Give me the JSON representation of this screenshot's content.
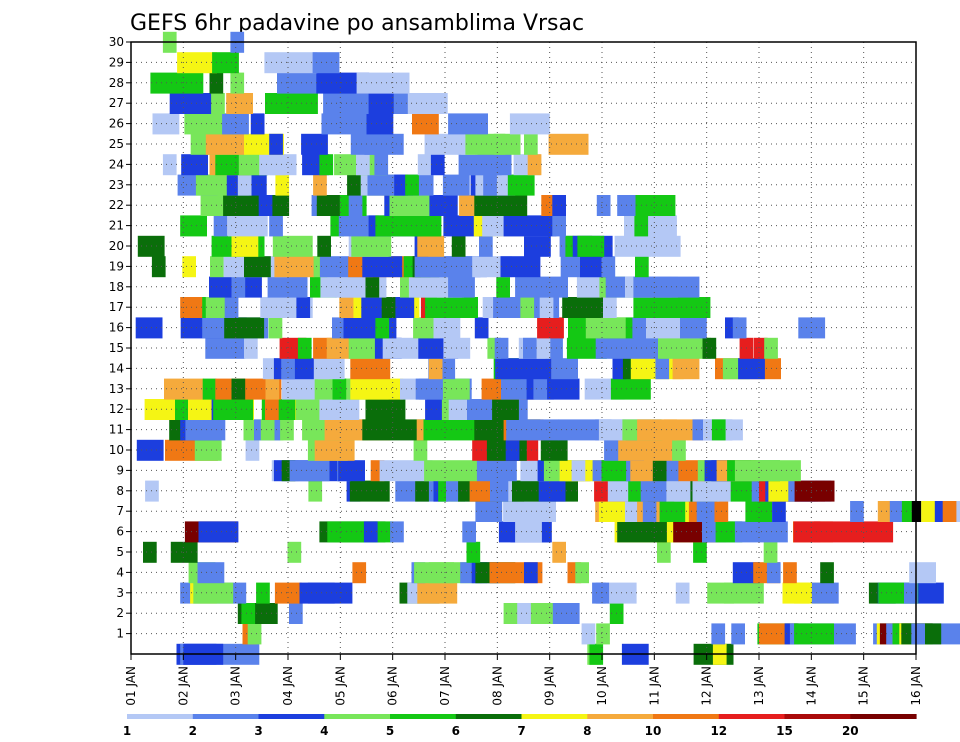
{
  "chart_data": {
    "type": "heatmap",
    "title": "GEFS 6hr padavine po ansamblima Vrsac",
    "xlabel": "",
    "ylabel": "",
    "x_tick_labels": [
      "01 JAN",
      "02 JAN",
      "03 JAN",
      "04 JAN",
      "05 JAN",
      "06 JAN",
      "07 JAN",
      "08 JAN",
      "09 JAN",
      "10 JAN",
      "11 JAN",
      "12 JAN",
      "13 JAN",
      "14 JAN",
      "15 JAN",
      "16 JAN"
    ],
    "xlim": [
      0,
      15
    ],
    "ylim": [
      0,
      30
    ],
    "y_ticks": [
      1,
      2,
      3,
      4,
      5,
      6,
      7,
      8,
      9,
      10,
      11,
      12,
      13,
      14,
      15,
      16,
      17,
      18,
      19,
      20,
      21,
      22,
      23,
      24,
      25,
      26,
      27,
      28,
      29,
      30
    ],
    "grid": true,
    "colorbar": {
      "placement": "bottom",
      "levels": [
        "1",
        "2",
        "3",
        "4",
        "5",
        "6",
        "7",
        "8",
        "10",
        "12",
        "15",
        "20"
      ],
      "colors": [
        "#b4c8f5",
        "#5a82eb",
        "#1c3ede",
        "#78e65a",
        "#14c814",
        "#0a6e0a",
        "#f5f514",
        "#f5aa3c",
        "#f07814",
        "#e61e1e",
        "#aa0a0a",
        "#780000"
      ]
    },
    "member_levels": {
      "0": "3:0.87:3 6:0.94:2 3:1:3 1:8.72:4 1:8.76:5 2:9.38:3 3:10.75:6 1:11.12:7",
      "1": "1:2.13:9 1:2.23:4 1:8.61:1 1:8.89:4 1:11.09:2 1:11.47:2 3:11.97:5 3:12:9 1:12.49:3 5:12.59:2 3:12.67:5 1:14.18:2 3:14.25:7 4:14.31:12 6:14.43:2 3:14.55:5 2:14.68:7 3:14.72:6 1:14.91:2",
      "2": "3:2.04:6 1:2.11:5 1:3.02:2 1:7.12:4 4:7.31:4 1:7.38:1 2:8.06:2 1:9.15:5",
      "3": "5:0.94:2 2:1.13:7 3:1.19:4 1:2.39:5 2:2.75:9 4:3.22:3 2:3.38:3 3:5.13:6 3:5.28:1 3:5.47:8 1:8.81:2 1:8.88:2 2:9.15:1 1:10.41:1 2:11.01:4 3:11.33:4 2:12.45:7 3:12.67:7 2:13.01:2 2:14.1:6 5:14.27:3 3:14.28:5 1:14.77:2",
      "4": "2:1.1:4 2:1.27:2 1:4.23:9 1:5.36:2 3:5.41:4 4:5.69:4 2:6.29:2 2:6.51:3 3:6.58:6 4:6.85:9 1:7.51:3 1:8.34:9 1:8.49:4 2:11.5:3 2:11.89:9 1:12.15:2 1:12.46:9 1:13.17:6 2:14.87:1",
      "5": "1:0.23:6 2:0.76:6 1:2.99:4 1:6.41:5 1:8.05:8 1:10.05:4 1:10.74:5 1:12.09:4",
      "6": "4:1.03:12 3:1.29:3 5:3.6:6 5:3.75:5 1:4.45:3 1:4.95:2 1:6.33:2 4:7.03:3 3:7.25:3 2:7.34:1 5:9.24:7 4:9.29:6 5:10.24:7 4:10.36:12 3:10.91:2 2:11.17:5 4:11.54:2 3:12.65:9 2:12.66:10 6:13.05:10",
      "7": "2:6.58:2 4:7.11:1 1:8.87:8 3:8.94:7 5:9.44:1 2:9.67:8 3:9.78:2 3:10.04:8 3:10.1:5 2:10.59:7 1:10.66:9 2:10.81:2 1:11.15:9 2:11.74:5 1:12.25:3 1:13.74:2 3:14.27:8 4:14.5:2 1:14.73:5 2:14.92:15 4:15.1:1 2:15.1:7 1:15.36:3 1:15.51:9 1:16.06:8 2:16.14:2 3:16.3:6",
      "8": "1:0.27:1 1:3.39:4 1:4.12:3 3:4.18:6 4:5.05:2 1:5.43:6 1:5.78:3 2:5.87:5 5:6.02:2 5:6.25:6 2:6.47:9 2:6.86:2 5:7.21:1 5:7.28:6 2:7.79:3 5:8.85:10 3:9.11:1 5:9.5:5 2:9.74:2 5:10.23:1 1:10.38:1 2:10.69:6 2:10.73:1 4:11.46:5 5:11.86:2 5:12:10 5:12.12:3 2:12.18:7 2:12.56:2 3:12.68:12",
      "9": "2:2.69:1 5:2.73:3 1:2.88:6 3:3.03:2 1:3.94:2 2:3.96:3 1:4.58:9 4:4.75:1 4:5.6:4 3:6.61:2 4:7.44:1 4:7.77:3 3:7.89:4 4:8.19:7 3:8.3:7 1:8.42:1 3:8.82:2 2:8.99:5 4:9.46:2 2:9.54:8 1:9.97:6 2:10.46:9 4:10.83:4 2:10.96:3 3:11.09:3 3:11.19:8 4:11.39:5 5:11.54:4",
      "10": "2:0.11:3 4:0.65:9 2:1.22:4 1:2.19:1 3:3.38:4 3:3.51:8 1:5.4:4 5:6.52:10 3:6.8:6 1:7.16:3 2:7.83:6 3:9.04:2 5:9.31:8 1:10.34:4",
      "11": "1:0.73:6 3:0.94:3 3:1.04:2 3:2.15:4 2:2.35:2 1:2.48:4 1:2.85:4 5:3.27:4 5:3.7:8 5:4.42:6 1:5.46:8 4:5.59:5 5:6.56:6 3:7.12:9 4:7.17:2 4:8.17:2 5:8.87:2 2:8.94:1 3:9.39:4 3:9.67:8 3:10.18:8 3:10.73:2 3:10.93:1 1:11.1:5",
      "12": "4:0.26:7 1:0.84:5 5:1.09:7 3:1.54:3 3:1.57:5 5:2.5:5 1:2.56:9 2:3.14:7 2:3.15:4 3:3.6:1 3:4.48:6 4:5.62:3 4:5.94:4 5:6.07:1 2:6.42:2 4:6.57:2 2:6.9:6",
      "13": "3:0.63:8 1:1.37:5 5:1.61:9 1:1.92:6 1:2.57:8 5:2.88:1 4:3.51:4 1:3.85:5 3:4.16:4 4:4.19:7 2:5.14:1 4:5.44:2 4:5.5:2 2:5.96:4 4:6.7:9 4:7.07:2 4:7.56:3 1:7.69:2 3:8.67:1 3:9.17:5",
      "14": "5:2.52:1 3:2.73:3 1:2.87:2 2:3.57:1 3:4.19:9 2:5.68:2 1:5.69:8 2:6.93:5 5:6.96:3 2:8.03:2 1:9.2:3 2:9.4:6 4:9.55:7 1:10.02:2 2:10.35:8 5:11.16:9 2:11.31:4 2:11.6:3",
      "15": "3:1.42:2 1:2.16:1 2:2.84:10 1:3.19:5 2:3.48:9 5:3.74:8 2:4.16:4 2:4.66:3 5:4.81:1 3:5.49:3 2:5.97:1 1:6.81:4 1:6.95:2 2:7.41:1 3:7.49:2 1:7.75:1 3:8.33:5 5:8.88:2 4:10.07:4 1:10.92:6 1:11.63:10 1:11.9:10 1:12.1:4",
      "16": "2:0.09:3 5:0.95:3 5:1.36:2 3:1.78:6 1:2.63:4 1:3.84:2 4:4.06:3 1:4.67:5 2:5.39:4 2:5.78:1 1:6.57:3 2:7.76:10 5:8.35:5 3:8.69:4 1:9.58:2 4:9.84:1 2:10.49:2 1:11.35:3 1:11.5:2 2:12.75:2",
      "17": "2:0.94:9 2:1.36:5 2:1.43:4 1:1.79:2 1:2.47:1 3:2.71:1 1:3.16:3 3:3.98:8 5:4.25:7 4:4.4:3 1:4.79:6 3:5.54:10 4:5.62:5 1:6.72:1 5:6.92:2 1:7.44:4 1:7.81:1 4:8.24:6 1:9.02:1 5:9.6:5 5:9.81:5",
      "18": "4:1.49:3 1:1.92:2 3:2.61:2 2:3.42:5 5:3.62:1 2:3.9:1 1:4.48:6 4:5.14:4 4:5.31:1 2:5.85:1 2:6.06:2 1:6.98:5 4:7.34:2 3:8.52:1 4:8.95:4 5:9.07:2 4:9.44:1 5:9.6:2",
      "19": "1:0.4:6 1:0.98:7 1:1.51:4 5:1.77:1 2:2.16:6 3:2.74:8 1:3.49:4 4:3.61:2 5:4.15:9 3:4.42:3 2:5.21:5 2:5.38:6 5:5.42:2 5:5.54:2 3:6.52:1 3:7.06:3 3:8.21:2 2:8.58:3 1:8.99:2 1:9.63:5",
      "20": "2:0.13:6 4:1.54:5 2:1.92:7 3:2.71:4 1:3.56:6 3:4.16:1 3:4.21:4 1:5.42:3 2:5.47:8 1:6.13:6 1:6.65:2 2:7.51:3 1:8.19:2 2:8.3:5 3:8.44:3 2:8.53:5 5:9.24:1",
      "21": "2:0.94:5 1:1.58:2 3:1.85:1 1:2.64:2 1:3.81:5 3:3.97:2 4:4.54:3 5:4.67:5 2:5.41:5 3:5.97:3 4:6.55:7 5:6.71:1 4:7.12:3 1:8.05:2 4:9.42:1 1:9.62:5",
      "22": "3:1.33:4 5:1.76:6 1:2.44:3 2:3.45:2 3:3.55:6 2:3.99:5 1:4.16:2 5:4.84:3 3:4.94:4 2:5.73:3 4:6.27:8 4:6.56:6 1:7.84:9 1:8.05:3 1:8.9:2 3:9.29:2 3:9.64:5",
      "23": "3:0.89:2 4:1.24:4 3:1.83:3 1:2.04:1 1:2.76:7 1:3.48:8 5:4.13:6 4:4.39:1 5:4.52:2 1:5.03:3 1:5.24:5 2:5.96:2 3:6.49:3 3:6.58:1 1:6.73:2 2:7.2:5",
      "24": "1:0.61:1 2:0.96:3 3:1.5:8 4:1.61:5 2:2.06:4 2:2.45:1 2:2.65:1 2:3.27:3 1:3.6:5 4:3.88:4 1:4.3:1 1:4.65:2 2:5.48:1 1:5.73:3 4:6.26:2 3:6.32:2 2:7.31:1 1:7.58:8",
      "25": "4:1.14:4 3:1.43:8 3:2.16:7 1:2.64:3 2:3.25:3 4:4.2:2 1:4.46:2 4:5.61:1 1:6.31:1 3:6.39:4 2:6.93:4 1:7.51:4 3:7.98:8",
      "26": "2:0.41:1 4:1.02:4 2:1.74:2 1:2.29:3 4:3.64:2 2:4.5:3 2:5.37:9 3:6.06:2 3:7.24:1",
      "27": "4:0.74:3 1:1.53:4 2:1.82:8 4:2.56:5 4:3.67:2 4:4.54:3 4:5.02:2 3:5.29:1",
      "28": "4:0.37:5 1:1.5:6 1:1.9:4 3:2.79:2 4:3.54:3 4:4.31:1",
      "29": "3:0.88:7 2:1.55:5 4:2.55:1 2:3.47:2",
      "30": "1:0.61:4 1:1.9:2"
    }
  }
}
